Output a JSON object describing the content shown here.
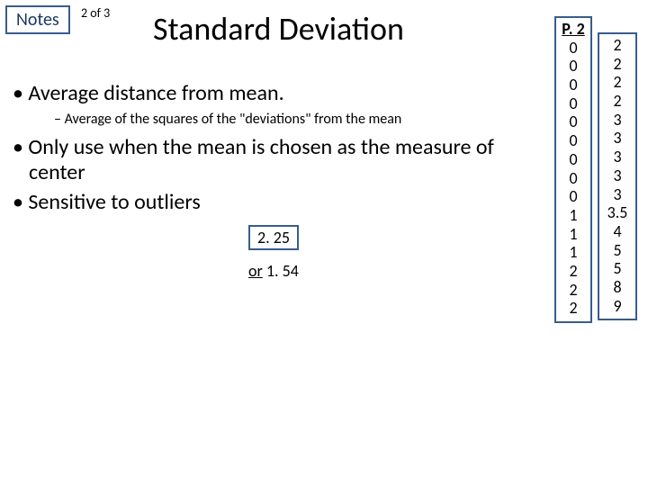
{
  "header": {
    "notes_label": "Notes",
    "page_indicator": "2 of 3",
    "title": "Standard Deviation"
  },
  "bullets": {
    "b1": "Average distance from mean.",
    "b1_sub1": "Average of the squares of the \"deviations\" from the mean",
    "b2": "Only use when the mean is chosen as the measure of center",
    "b3": "Sensitive to outliers"
  },
  "calc": {
    "val1": "2. 25",
    "val2_prefix": "or",
    "val2_num": " 1. 54"
  },
  "table1": {
    "header": "P. 2",
    "rows": [
      "0",
      "0",
      "0",
      "0",
      "0",
      "0",
      "0",
      "0",
      "0",
      "1",
      "1",
      "1",
      "2",
      "2",
      "2"
    ]
  },
  "table2": {
    "rows": [
      "2",
      "2",
      "2",
      "2",
      "3",
      "3",
      "3",
      "3",
      "3",
      "3.5",
      "4",
      "5",
      "5",
      "8",
      "9"
    ]
  }
}
